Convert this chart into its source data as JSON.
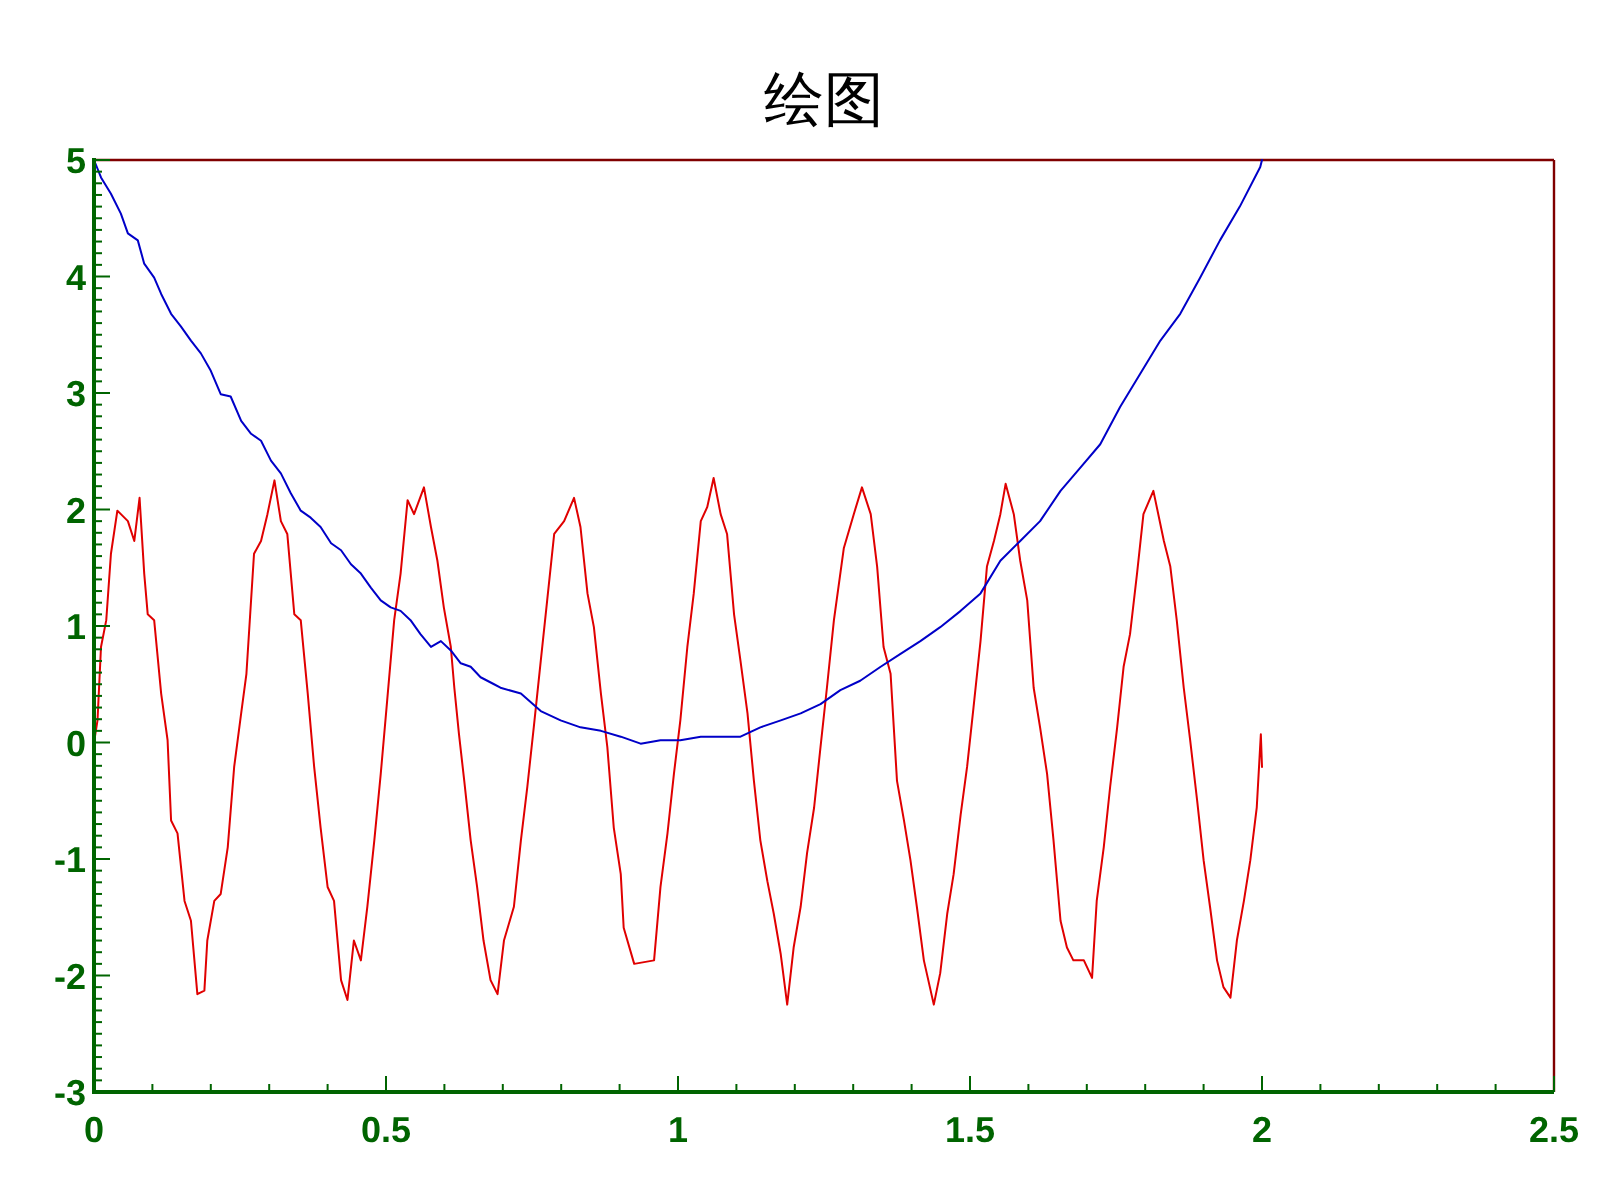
{
  "chart_data": {
    "type": "line",
    "title": "绘图",
    "xlim": [
      0,
      2.5
    ],
    "ylim": [
      -3,
      5
    ],
    "xticks": [
      0,
      {
        "value": 0.1,
        "label": null
      },
      {
        "value": 0.2,
        "label": null
      },
      {
        "value": 0.3,
        "label": null
      },
      {
        "value": 0.4,
        "label": null
      },
      0.5,
      {
        "value": 0.6,
        "label": null
      },
      {
        "value": 0.7,
        "label": null
      },
      {
        "value": 0.8,
        "label": null
      },
      {
        "value": 0.9,
        "label": null
      },
      1,
      {
        "value": 1.1,
        "label": null
      },
      {
        "value": 1.2,
        "label": null
      },
      {
        "value": 1.3,
        "label": null
      },
      {
        "value": 1.4,
        "label": null
      },
      1.5,
      {
        "value": 1.6,
        "label": null
      },
      {
        "value": 1.7,
        "label": null
      },
      {
        "value": 1.8,
        "label": null
      },
      {
        "value": 1.9,
        "label": null
      },
      2,
      {
        "value": 2.1,
        "label": null
      },
      {
        "value": 2.2,
        "label": null
      },
      {
        "value": 2.3,
        "label": null
      },
      {
        "value": 2.4,
        "label": null
      },
      2.5
    ],
    "yticks": [
      -3,
      {
        "value": -2.9,
        "label": null
      },
      {
        "value": -2.8,
        "label": null
      },
      {
        "value": -2.7,
        "label": null
      },
      {
        "value": -2.6,
        "label": null
      },
      {
        "value": -2.5,
        "label": null
      },
      {
        "value": -2.4,
        "label": null
      },
      {
        "value": -2.3,
        "label": null
      },
      {
        "value": -2.2,
        "label": null
      },
      {
        "value": -2.1,
        "label": null
      },
      -2,
      {
        "value": -1.9,
        "label": null
      },
      {
        "value": -1.8,
        "label": null
      },
      {
        "value": -1.7,
        "label": null
      },
      {
        "value": -1.6,
        "label": null
      },
      {
        "value": -1.5,
        "label": null
      },
      {
        "value": -1.4,
        "label": null
      },
      {
        "value": -1.3,
        "label": null
      },
      {
        "value": -1.2,
        "label": null
      },
      {
        "value": -1.1,
        "label": null
      },
      -1,
      {
        "value": -0.9,
        "label": null
      },
      {
        "value": -0.8,
        "label": null
      },
      {
        "value": -0.7,
        "label": null
      },
      {
        "value": -0.6,
        "label": null
      },
      {
        "value": -0.5,
        "label": null
      },
      {
        "value": -0.4,
        "label": null
      },
      {
        "value": -0.3,
        "label": null
      },
      {
        "value": -0.2,
        "label": null
      },
      {
        "value": -0.1,
        "label": null
      },
      0,
      {
        "value": 0.1,
        "label": null
      },
      {
        "value": 0.2,
        "label": null
      },
      {
        "value": 0.3,
        "label": null
      },
      {
        "value": 0.4,
        "label": null
      },
      {
        "value": 0.5,
        "label": null
      },
      {
        "value": 0.6,
        "label": null
      },
      {
        "value": 0.7,
        "label": null
      },
      {
        "value": 0.8,
        "label": null
      },
      {
        "value": 0.9,
        "label": null
      },
      1,
      {
        "value": 1.1,
        "label": null
      },
      {
        "value": 1.2,
        "label": null
      },
      {
        "value": 1.3,
        "label": null
      },
      {
        "value": 1.4,
        "label": null
      },
      {
        "value": 1.5,
        "label": null
      },
      {
        "value": 1.6,
        "label": null
      },
      {
        "value": 1.7,
        "label": null
      },
      {
        "value": 1.8,
        "label": null
      },
      {
        "value": 1.9,
        "label": null
      },
      2,
      {
        "value": 2.1,
        "label": null
      },
      {
        "value": 2.2,
        "label": null
      },
      {
        "value": 2.3,
        "label": null
      },
      {
        "value": 2.4,
        "label": null
      },
      {
        "value": 2.5,
        "label": null
      },
      {
        "value": 2.6,
        "label": null
      },
      {
        "value": 2.7,
        "label": null
      },
      {
        "value": 2.8,
        "label": null
      },
      {
        "value": 2.9,
        "label": null
      },
      3,
      {
        "value": 3.1,
        "label": null
      },
      {
        "value": 3.2,
        "label": null
      },
      {
        "value": 3.3,
        "label": null
      },
      {
        "value": 3.4,
        "label": null
      },
      {
        "value": 3.5,
        "label": null
      },
      {
        "value": 3.6,
        "label": null
      },
      {
        "value": 3.7,
        "label": null
      },
      {
        "value": 3.8,
        "label": null
      },
      {
        "value": 3.9,
        "label": null
      },
      4,
      {
        "value": 4.1,
        "label": null
      },
      {
        "value": 4.2,
        "label": null
      },
      {
        "value": 4.3,
        "label": null
      },
      {
        "value": 4.4,
        "label": null
      },
      {
        "value": 4.5,
        "label": null
      },
      {
        "value": 4.6,
        "label": null
      },
      {
        "value": 4.7,
        "label": null
      },
      {
        "value": 4.8,
        "label": null
      },
      {
        "value": 4.9,
        "label": null
      },
      5
    ],
    "series": [
      {
        "color": "#e00000",
        "x": [
          0,
          0.006,
          0.012,
          0.021,
          0.029,
          0.04,
          0.058,
          0.069,
          0.078,
          0.086,
          0.092,
          0.103,
          0.115,
          0.126,
          0.132,
          0.143,
          0.155,
          0.166,
          0.177,
          0.189,
          0.194,
          0.206,
          0.217,
          0.229,
          0.24,
          0.252,
          0.261,
          0.274,
          0.286,
          0.297,
          0.309,
          0.32,
          0.331,
          0.343,
          0.354,
          0.366,
          0.377,
          0.388,
          0.4,
          0.411,
          0.423,
          0.434,
          0.445,
          0.457,
          0.468,
          0.48,
          0.491,
          0.502,
          0.514,
          0.525,
          0.537,
          0.548,
          0.565,
          0.577,
          0.588,
          0.599,
          0.611,
          0.617,
          0.625,
          0.634,
          0.645,
          0.656,
          0.667,
          0.679,
          0.691,
          0.702,
          0.719,
          0.731,
          0.742,
          0.753,
          0.765,
          0.776,
          0.788,
          0.805,
          0.822,
          0.833,
          0.845,
          0.856,
          0.868,
          0.879,
          0.89,
          0.902,
          0.907,
          0.925,
          0.959,
          0.97,
          0.982,
          0.993,
          1.004,
          1.016,
          1.027,
          1.039,
          1.05,
          1.061,
          1.073,
          1.084,
          1.096,
          1.107,
          1.119,
          1.13,
          1.141,
          1.153,
          1.164,
          1.176,
          1.187,
          1.198,
          1.21,
          1.221,
          1.233,
          1.244,
          1.255,
          1.267,
          1.284,
          1.301,
          1.315,
          1.33,
          1.341,
          1.352,
          1.364,
          1.375,
          1.387,
          1.398,
          1.409,
          1.421,
          1.438,
          1.449,
          1.461,
          1.472,
          1.484,
          1.495,
          1.506,
          1.518,
          1.529,
          1.541,
          1.552,
          1.561,
          1.575,
          1.586,
          1.598,
          1.609,
          1.62,
          1.632,
          1.643,
          1.655,
          1.666,
          1.677,
          1.695,
          1.709,
          1.717,
          1.729,
          1.74,
          1.752,
          1.763,
          1.774,
          1.786,
          1.797,
          1.814,
          1.832,
          1.843,
          1.854,
          1.866,
          1.877,
          1.889,
          1.9,
          1.911,
          1.923,
          1.934,
          1.946,
          1.957,
          1.969,
          1.98,
          1.991,
          1.998,
          2.0
        ],
        "values": [
          0,
          0.19,
          0.82,
          1.05,
          1.62,
          1.99,
          1.9,
          1.73,
          2.1,
          1.45,
          1.1,
          1.05,
          0.42,
          0.02,
          -0.67,
          -0.78,
          -1.36,
          -1.53,
          -2.16,
          -2.13,
          -1.7,
          -1.36,
          -1.3,
          -0.9,
          -0.21,
          0.25,
          0.59,
          1.62,
          1.73,
          1.96,
          2.25,
          1.9,
          1.79,
          1.1,
          1.05,
          0.42,
          -0.21,
          -0.73,
          -1.24,
          -1.36,
          -2.04,
          -2.21,
          -1.7,
          -1.87,
          -1.41,
          -0.84,
          -0.27,
          0.36,
          1.05,
          1.45,
          2.08,
          1.96,
          2.19,
          1.85,
          1.56,
          1.16,
          0.82,
          0.47,
          0.07,
          -0.33,
          -0.84,
          -1.24,
          -1.7,
          -2.04,
          -2.16,
          -1.7,
          -1.41,
          -0.84,
          -0.38,
          0.13,
          0.7,
          1.22,
          1.79,
          1.9,
          2.1,
          1.85,
          1.28,
          0.99,
          0.42,
          -0.04,
          -0.73,
          -1.13,
          -1.59,
          -1.9,
          -1.87,
          -1.24,
          -0.78,
          -0.27,
          0.19,
          0.82,
          1.28,
          1.9,
          2.02,
          2.27,
          1.96,
          1.79,
          1.1,
          0.7,
          0.25,
          -0.33,
          -0.84,
          -1.19,
          -1.47,
          -1.82,
          -2.25,
          -1.76,
          -1.41,
          -0.95,
          -0.56,
          -0.04,
          0.47,
          1.05,
          1.67,
          1.96,
          2.19,
          1.96,
          1.51,
          0.82,
          0.59,
          -0.33,
          -0.67,
          -1.01,
          -1.41,
          -1.87,
          -2.25,
          -1.98,
          -1.47,
          -1.13,
          -0.62,
          -0.21,
          0.3,
          0.87,
          1.51,
          1.73,
          1.96,
          2.22,
          1.96,
          1.56,
          1.22,
          0.47,
          0.13,
          -0.27,
          -0.84,
          -1.53,
          -1.76,
          -1.87,
          -1.87,
          -2.02,
          -1.36,
          -0.9,
          -0.38,
          0.13,
          0.65,
          0.93,
          1.45,
          1.96,
          2.16,
          1.73,
          1.51,
          1.05,
          0.47,
          0.02,
          -0.5,
          -1.01,
          -1.41,
          -1.87,
          -2.1,
          -2.19,
          -1.7,
          -1.36,
          -1.01,
          -0.56,
          0.07,
          -0.21
        ]
      },
      {
        "color": "#0000c8",
        "x": [
          0,
          0.012,
          0.029,
          0.046,
          0.058,
          0.075,
          0.086,
          0.103,
          0.115,
          0.132,
          0.149,
          0.166,
          0.183,
          0.2,
          0.217,
          0.234,
          0.252,
          0.269,
          0.286,
          0.303,
          0.32,
          0.337,
          0.354,
          0.371,
          0.388,
          0.406,
          0.423,
          0.44,
          0.457,
          0.474,
          0.491,
          0.508,
          0.525,
          0.542,
          0.559,
          0.577,
          0.594,
          0.611,
          0.628,
          0.645,
          0.662,
          0.685,
          0.696,
          0.731,
          0.765,
          0.799,
          0.833,
          0.868,
          0.902,
          0.936,
          0.97,
          1.004,
          1.039,
          1.073,
          1.107,
          1.141,
          1.176,
          1.21,
          1.244,
          1.278,
          1.312,
          1.347,
          1.381,
          1.415,
          1.449,
          1.484,
          1.518,
          1.552,
          1.586,
          1.62,
          1.655,
          1.689,
          1.723,
          1.757,
          1.792,
          1.826,
          1.86,
          1.894,
          1.928,
          1.962,
          1.997,
          2.0
        ],
        "values": [
          5.0,
          4.85,
          4.71,
          4.54,
          4.37,
          4.31,
          4.11,
          3.99,
          3.85,
          3.68,
          3.57,
          3.45,
          3.34,
          3.19,
          2.99,
          2.97,
          2.76,
          2.65,
          2.59,
          2.42,
          2.31,
          2.14,
          1.99,
          1.93,
          1.85,
          1.71,
          1.65,
          1.53,
          1.45,
          1.33,
          1.22,
          1.16,
          1.13,
          1.05,
          0.93,
          0.82,
          0.87,
          0.79,
          0.68,
          0.65,
          0.56,
          0.5,
          0.47,
          0.42,
          0.27,
          0.19,
          0.13,
          0.1,
          0.05,
          -0.01,
          0.02,
          0.02,
          0.05,
          0.05,
          0.05,
          0.13,
          0.19,
          0.25,
          0.33,
          0.45,
          0.53,
          0.65,
          0.76,
          0.87,
          0.99,
          1.13,
          1.28,
          1.56,
          1.73,
          1.9,
          2.16,
          2.36,
          2.56,
          2.88,
          3.17,
          3.45,
          3.68,
          3.99,
          4.31,
          4.6,
          4.94,
          5.0
        ]
      }
    ]
  }
}
